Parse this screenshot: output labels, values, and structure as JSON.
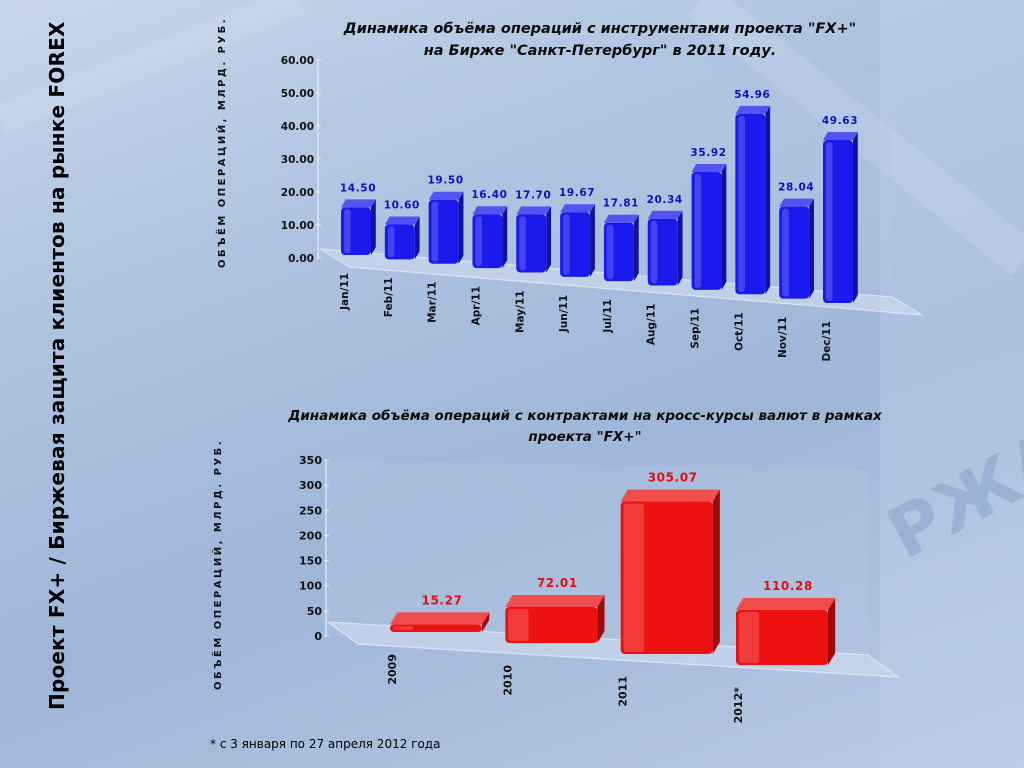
{
  "slide": {
    "side_title": "Проект FX+ / Биржевая защита клиентов на рынке FOREX",
    "footnote": "* с 3 января по 27 апреля 2012 года",
    "accent_blue": "#1a1aee",
    "accent_red": "#ee1111",
    "background": "#aec3e0"
  },
  "chart_data": [
    {
      "type": "bar",
      "title_line1": "Динамика объёма операций с инструментами проекта \"FX+\"",
      "title_line2": "на Бирже \"Санкт-Петербург\" в 2011 году.",
      "ylabel": "ОБЪЁМ ОПЕРАЦИЙ, МЛРД. РУБ.",
      "ylim": [
        0,
        60
      ],
      "yticks": [
        "0.00",
        "10.00",
        "20.00",
        "30.00",
        "40.00",
        "50.00",
        "60.00"
      ],
      "categories": [
        "Jan/11",
        "Feb/11",
        "Mar/11",
        "Apr/11",
        "May/11",
        "Jun/11",
        "Jul/11",
        "Aug/11",
        "Sep/11",
        "Oct/11",
        "Nov/11",
        "Dec/11"
      ],
      "values": [
        14.5,
        10.6,
        19.5,
        16.4,
        17.7,
        19.67,
        17.81,
        20.34,
        35.92,
        54.96,
        28.04,
        49.63
      ],
      "value_labels": [
        "14.50",
        "10.60",
        "19.50",
        "16.40",
        "17.70",
        "19.67",
        "17.81",
        "20.34",
        "35.92",
        "54.96",
        "28.04",
        "49.63"
      ],
      "color": "#1a1aee",
      "grid": false
    },
    {
      "type": "bar",
      "title_line1": "Динамика объёма операций с контрактами на кросс-курсы валют в рамках",
      "title_line2": "проекта \"FX+\"",
      "ylabel": "ОБЪЁМ ОПЕРАЦИЙ, МЛРД. РУБ.",
      "ylim": [
        0,
        350
      ],
      "yticks": [
        "0",
        "50",
        "100",
        "150",
        "200",
        "250",
        "300",
        "350"
      ],
      "categories": [
        "2009",
        "2010",
        "2011",
        "2012*"
      ],
      "values": [
        15.27,
        72.01,
        305.07,
        110.28
      ],
      "value_labels": [
        "15.27",
        "72.01",
        "305.07",
        "110.28"
      ],
      "color": "#ee1111",
      "grid": false
    }
  ]
}
